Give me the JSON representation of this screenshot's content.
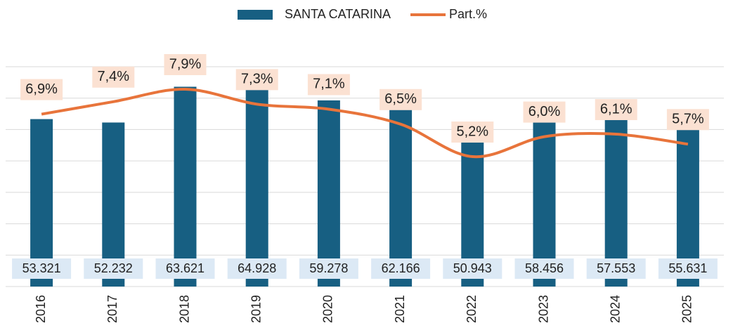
{
  "chart_data": {
    "type": "bar_line",
    "categories": [
      "2016",
      "2017",
      "2018",
      "2019",
      "2020",
      "2021",
      "2022",
      "2023",
      "2024",
      "2025"
    ],
    "series": [
      {
        "name": "SANTA CATARINA",
        "type": "bar",
        "color": "#175f82",
        "values": [
          53321,
          52232,
          63621,
          64928,
          59278,
          62166,
          50943,
          58456,
          57553,
          55631
        ],
        "value_labels": [
          "53.321",
          "52.232",
          "63.621",
          "64.928",
          "59.278",
          "62.166",
          "50.943",
          "58.456",
          "57.553",
          "55.631"
        ]
      },
      {
        "name": "Part.%",
        "type": "line",
        "axis": "y2",
        "color": "#e8743b",
        "values": [
          6.9,
          7.4,
          7.9,
          7.3,
          7.1,
          6.5,
          5.2,
          6.0,
          6.1,
          5.7
        ],
        "value_labels": [
          "6,9%",
          "7,4%",
          "7,9%",
          "7,3%",
          "7,1%",
          "6,5%",
          "5,2%",
          "6,0%",
          "6,1%",
          "5,7%"
        ]
      }
    ],
    "ylim": [
      0,
      70000
    ],
    "yticks": [
      0,
      10000,
      20000,
      30000,
      40000,
      50000,
      60000,
      70000
    ],
    "y2lim": [
      0,
      8.8
    ],
    "grid": true,
    "legend": "top"
  }
}
